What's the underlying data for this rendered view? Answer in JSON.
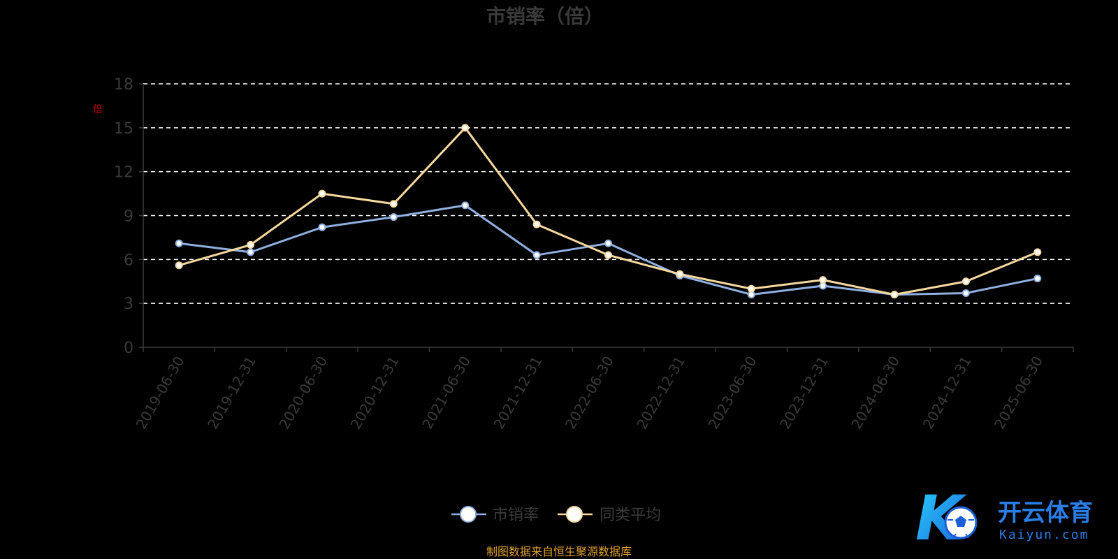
{
  "chart_data": {
    "type": "line",
    "title": "市销率（倍）",
    "ylabel": "倍",
    "ylim": [
      0,
      18
    ],
    "yticks": [
      "0",
      "3",
      "6",
      "9",
      "12",
      "15",
      "18"
    ],
    "grid": true,
    "legend_position": "bottom-center",
    "categories": [
      "2019-06-30",
      "2019-12-31",
      "2020-06-30",
      "2020-12-31",
      "2021-06-30",
      "2021-12-31",
      "2022-06-30",
      "2022-12-31",
      "2023-06-30",
      "2023-12-31",
      "2024-06-30",
      "2024-12-31",
      "2025-06-30"
    ],
    "series": [
      {
        "name": "市销率",
        "color": "#8fb0e0",
        "values": [
          7.1,
          6.5,
          8.2,
          8.9,
          9.7,
          6.3,
          7.1,
          4.9,
          3.6,
          4.2,
          3.6,
          3.7,
          4.7
        ]
      },
      {
        "name": "同类平均",
        "color": "#f7d9a0",
        "values": [
          5.6,
          7.0,
          10.5,
          9.8,
          15.0,
          8.4,
          6.3,
          5.0,
          4.0,
          4.6,
          3.6,
          4.5,
          6.5
        ]
      }
    ],
    "source": "制图数据来自恒生聚源数据库"
  },
  "colors": {
    "background": "#000000",
    "grid": "#ffffff",
    "axis_text": "#3a3a3a",
    "ylabel": "#cc0000",
    "source": "#e0a030"
  },
  "watermark": {
    "main": "开云体育",
    "sub": "Kaiyun.com",
    "logo_letter": "K",
    "logo_icon": "soccer-ball-icon"
  }
}
